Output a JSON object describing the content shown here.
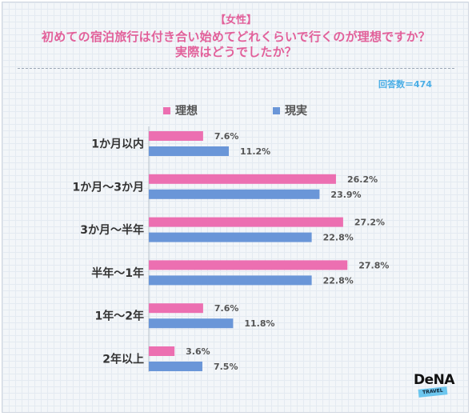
{
  "header": {
    "gender": "【女性】",
    "title_line1": "初めての宿泊旅行は付き合い始めてどれくらいで行くのが理想ですか？",
    "title_line2": "実際はどうでしたか？",
    "respondents": "回答数＝474"
  },
  "colors": {
    "ideal": "#ec6fb1",
    "actual": "#6a96d8",
    "title": "#e2609a"
  },
  "brand": {
    "logo_text": "DeNA",
    "logo_sub": "TRAVEL"
  },
  "chart_data": {
    "type": "bar",
    "orientation": "horizontal",
    "categories": [
      "1か月以内",
      "1か月～3か月",
      "3か月～半年",
      "半年～1年",
      "1年～2年",
      "2年以上"
    ],
    "series": [
      {
        "name": "理想",
        "values": [
          7.6,
          26.2,
          27.2,
          27.8,
          7.6,
          3.6
        ]
      },
      {
        "name": "現実",
        "values": [
          11.2,
          23.9,
          22.8,
          22.8,
          11.8,
          7.5
        ]
      }
    ],
    "value_suffix": "%",
    "legend": "top-left",
    "grid": false
  }
}
